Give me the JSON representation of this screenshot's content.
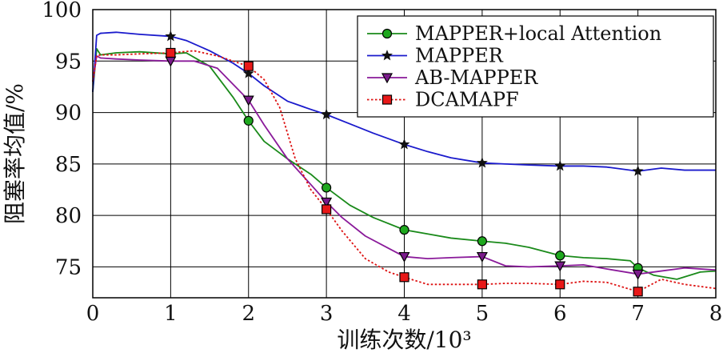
{
  "chart_data": {
    "type": "line",
    "xlabel": "训练次数/10³",
    "ylabel": "阻塞率均值/%",
    "xlim": [
      0,
      8
    ],
    "ylim": [
      72,
      100
    ],
    "xticks": [
      "0",
      "1",
      "2",
      "3",
      "4",
      "5",
      "6",
      "7",
      "8"
    ],
    "yticks": [
      "75",
      "80",
      "85",
      "90",
      "95",
      "100"
    ],
    "grid": true,
    "legend_position": "top-right",
    "series": [
      {
        "name": "MAPPER+local Attention",
        "color": "#1a8a1a",
        "marker": "circle",
        "line": "solid",
        "x": [
          0,
          0.05,
          0.1,
          0.3,
          0.6,
          1.0,
          1.2,
          1.5,
          1.8,
          2.0,
          2.2,
          2.5,
          2.8,
          3.0,
          3.3,
          3.6,
          4.0,
          4.3,
          4.6,
          5.0,
          5.3,
          5.6,
          6.0,
          6.3,
          6.6,
          6.9,
          7.0,
          7.2,
          7.5,
          7.8,
          8.0
        ],
        "y": [
          92,
          96.2,
          95.6,
          95.8,
          95.9,
          95.7,
          95.8,
          94.5,
          91.5,
          89.2,
          87.2,
          85.5,
          84.0,
          82.7,
          81.0,
          79.8,
          78.6,
          78.2,
          77.8,
          77.5,
          77.3,
          76.9,
          76.1,
          75.9,
          75.8,
          75.6,
          74.9,
          74.2,
          73.8,
          74.5,
          74.6
        ],
        "marker_x": [
          1,
          2,
          3,
          4,
          5,
          6,
          7
        ],
        "marker_y": [
          95.7,
          89.2,
          82.7,
          78.6,
          77.5,
          76.1,
          74.9
        ]
      },
      {
        "name": "MAPPER",
        "color": "#1a1acc",
        "marker": "star",
        "line": "solid",
        "x": [
          0,
          0.05,
          0.1,
          0.3,
          0.6,
          1.0,
          1.2,
          1.5,
          1.8,
          2.0,
          2.2,
          2.5,
          2.8,
          3.0,
          3.3,
          3.6,
          4.0,
          4.3,
          4.6,
          5.0,
          5.3,
          5.6,
          6.0,
          6.3,
          6.6,
          7.0,
          7.3,
          7.6,
          8.0
        ],
        "y": [
          92,
          97.5,
          97.7,
          97.8,
          97.6,
          97.4,
          97.0,
          96.0,
          94.8,
          93.8,
          92.6,
          91.1,
          90.3,
          89.8,
          88.9,
          88.0,
          86.9,
          86.2,
          85.6,
          85.1,
          85.0,
          84.9,
          84.8,
          84.8,
          84.7,
          84.3,
          84.6,
          84.4,
          84.4
        ],
        "marker_x": [
          1,
          2,
          3,
          4,
          5,
          6,
          7
        ],
        "marker_y": [
          97.4,
          93.8,
          89.8,
          86.9,
          85.1,
          84.8,
          84.3
        ]
      },
      {
        "name": "AB-MAPPER",
        "color": "#8a1a9a",
        "marker": "triangle-down",
        "line": "solid",
        "x": [
          0,
          0.05,
          0.1,
          0.3,
          0.6,
          1.0,
          1.3,
          1.6,
          2.0,
          2.2,
          2.5,
          2.8,
          3.0,
          3.2,
          3.5,
          3.8,
          4.0,
          4.3,
          4.6,
          5.0,
          5.3,
          5.6,
          6.0,
          6.3,
          6.6,
          7.0,
          7.3,
          7.6,
          8.0
        ],
        "y": [
          93,
          95.5,
          95.3,
          95.2,
          95.1,
          95.0,
          95.0,
          94.3,
          91.2,
          88.8,
          85.5,
          83.0,
          81.3,
          79.8,
          78.0,
          76.8,
          76.0,
          75.8,
          75.9,
          76.0,
          75.1,
          75.0,
          75.1,
          75.2,
          74.8,
          74.3,
          74.6,
          74.9,
          74.7
        ],
        "marker_x": [
          1,
          2,
          3,
          4,
          5,
          6,
          7
        ],
        "marker_y": [
          95.0,
          91.2,
          81.3,
          76.0,
          76.0,
          75.1,
          74.3
        ]
      },
      {
        "name": "DCAMAPF",
        "color": "#dd1111",
        "marker": "square",
        "line": "dotted",
        "x": [
          0,
          0.05,
          0.1,
          0.3,
          0.6,
          1.0,
          1.3,
          1.6,
          1.8,
          2.0,
          2.2,
          2.4,
          2.6,
          2.8,
          3.0,
          3.2,
          3.5,
          3.8,
          4.0,
          4.3,
          4.6,
          5.0,
          5.3,
          5.6,
          6.0,
          6.3,
          6.6,
          7.0,
          7.3,
          7.6,
          8.0
        ],
        "y": [
          93,
          95.5,
          95.6,
          95.6,
          95.7,
          95.8,
          96.0,
          95.5,
          95.0,
          94.5,
          93.2,
          90.5,
          85.5,
          82.5,
          80.6,
          78.5,
          75.8,
          74.5,
          74.0,
          73.3,
          73.3,
          73.3,
          73.4,
          73.4,
          73.3,
          73.6,
          73.5,
          72.6,
          73.8,
          73.3,
          72.9
        ],
        "marker_x": [
          1,
          2,
          3,
          4,
          5,
          6,
          7
        ],
        "marker_y": [
          95.8,
          94.5,
          80.6,
          74.0,
          73.3,
          73.3,
          72.6
        ]
      }
    ]
  }
}
